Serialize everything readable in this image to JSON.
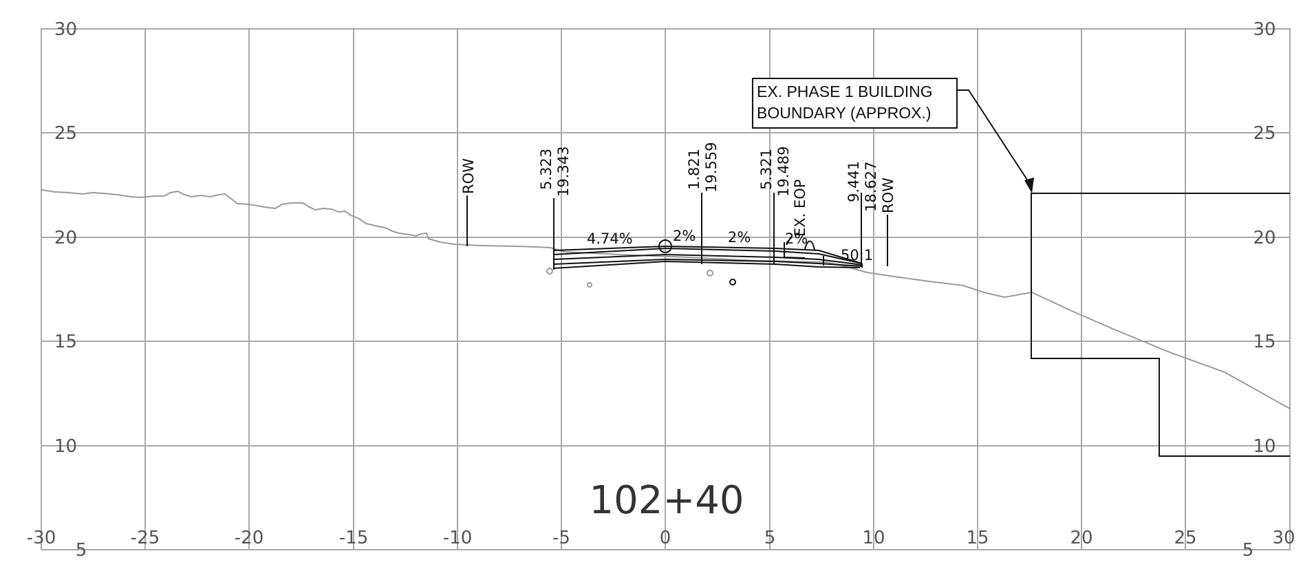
{
  "section": {
    "station": "102+40",
    "x_ticks": [
      "-30",
      "-25",
      "-20",
      "-15",
      "-10",
      "-5",
      "0",
      "5",
      "10",
      "15",
      "20",
      "25",
      "30"
    ],
    "y_ticks_left": [
      "30",
      "25",
      "20",
      "15",
      "10",
      "5"
    ],
    "y_ticks_right": [
      "30",
      "25",
      "20",
      "15",
      "10",
      "5"
    ],
    "slope_labels": [
      "4.74%",
      "2%",
      "2%",
      "2%",
      "50:1"
    ],
    "callouts": {
      "row_left": "ROW",
      "pt1_offset": "5.323",
      "pt1_elev": "19.343",
      "pt2_offset": "1.821",
      "pt2_elev": "19.559",
      "pt3_offset": "5.321",
      "pt3_elev": "19.489",
      "ex_eop": "EX. EOP",
      "pt4_offset": "9.441",
      "pt4_elev": "18.627",
      "row_right": "ROW"
    },
    "note": {
      "line1": "EX. PHASE 1 BUILDING",
      "line2": "BOUNDARY (APPROX.)"
    }
  }
}
